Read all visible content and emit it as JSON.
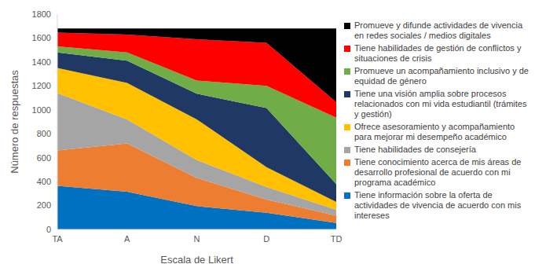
{
  "chart_data": {
    "type": "area",
    "stacked": true,
    "grid": false,
    "legend": "right",
    "x_label": "Escala de Likert",
    "y_label": "Número de respuestas",
    "categories": [
      "TA",
      "A",
      "N",
      "D",
      "TD"
    ],
    "ylim": [
      0,
      1800
    ],
    "yticks": [
      0,
      200,
      400,
      600,
      800,
      1000,
      1200,
      1400,
      1600,
      1800
    ],
    "series": [
      {
        "name": "Tiene información sobre la oferta de actividades de vivencia de acuerdo con mis intereses",
        "color": "#0070C0",
        "values": [
          365,
          315,
          195,
          140,
          55
        ]
      },
      {
        "name": "Tiene conocimiento acerca de mis áreas de desarrollo profesional de acuerdo con mi programa académico",
        "color": "#ED7D31",
        "values": [
          295,
          405,
          235,
          110,
          60
        ]
      },
      {
        "name": "Tiene habilidades de consejería",
        "color": "#A5A5A5",
        "values": [
          480,
          200,
          150,
          105,
          50
        ]
      },
      {
        "name": "Ofrece asesoramiento y acompañamiento para mejorar mi desempeño académico",
        "color": "#FFC000",
        "values": [
          210,
          305,
          340,
          165,
          65
        ]
      },
      {
        "name": "Tiene una visión amplia sobre procesos relacionados con mi vida estudiantil (trámites y gestión)",
        "color": "#203864",
        "values": [
          130,
          185,
          215,
          495,
          150
        ]
      },
      {
        "name": "Promueve un acompañamiento inclusivo y de equidad de género",
        "color": "#70AD47",
        "values": [
          50,
          70,
          110,
          185,
          555
        ]
      },
      {
        "name": "Tiene habilidades de gestión de conflictos y situaciones de crisis",
        "color": "#FF0000",
        "values": [
          115,
          150,
          345,
          360,
          130
        ]
      },
      {
        "name": "Promueve y difunde actividades de vivencia en redes sociales / medios digitales",
        "color": "#000000",
        "values": [
          35,
          50,
          90,
          120,
          615
        ]
      }
    ]
  }
}
